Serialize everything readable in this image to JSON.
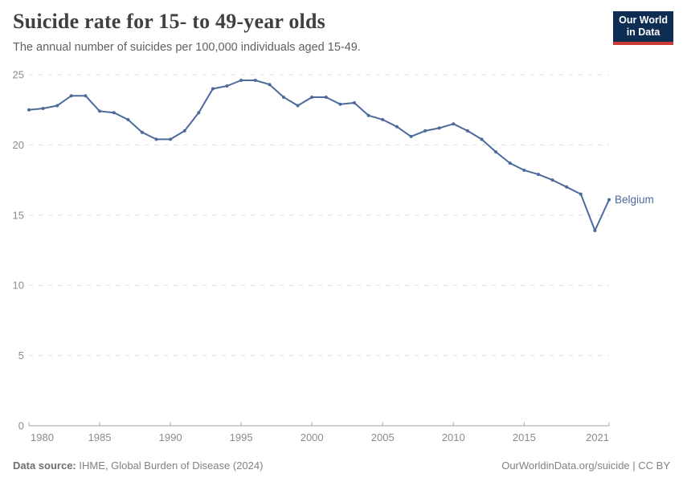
{
  "header": {
    "title": "Suicide rate for 15- to 49-year olds",
    "subtitle": "The annual number of suicides per 100,000 individuals aged 15-49."
  },
  "logo": {
    "line1": "Our World",
    "line2": "in Data",
    "bg_color": "#0d2d52",
    "accent_color": "#cc3b33"
  },
  "chart_data": {
    "type": "line",
    "title": "Suicide rate for 15- to 49-year olds",
    "x": [
      1980,
      1981,
      1982,
      1983,
      1984,
      1985,
      1986,
      1987,
      1988,
      1989,
      1990,
      1991,
      1992,
      1993,
      1994,
      1995,
      1996,
      1997,
      1998,
      1999,
      2000,
      2001,
      2002,
      2003,
      2004,
      2005,
      2006,
      2007,
      2008,
      2009,
      2010,
      2011,
      2012,
      2013,
      2014,
      2015,
      2016,
      2017,
      2018,
      2019,
      2020,
      2021
    ],
    "series": [
      {
        "name": "Belgium",
        "color": "#4c6a9c",
        "values": [
          22.5,
          22.6,
          22.8,
          23.5,
          23.5,
          22.4,
          22.3,
          21.8,
          20.9,
          20.4,
          20.4,
          21.0,
          22.3,
          24.0,
          24.2,
          24.6,
          24.6,
          24.3,
          23.4,
          22.8,
          23.4,
          23.4,
          22.9,
          23.0,
          22.1,
          21.8,
          21.3,
          20.6,
          21.0,
          21.2,
          21.5,
          21.0,
          20.4,
          19.5,
          18.7,
          18.2,
          17.9,
          17.5,
          17.0,
          16.5,
          13.9,
          16.1
        ]
      }
    ],
    "xlim": [
      1980,
      2021
    ],
    "ylim": [
      0,
      25
    ],
    "y_ticks": [
      0,
      5,
      10,
      15,
      20,
      25
    ],
    "x_ticks": [
      1980,
      1985,
      1990,
      1995,
      2000,
      2005,
      2010,
      2015,
      2021
    ],
    "grid": true,
    "legend_position": "end-of-line",
    "end_label": "Belgium",
    "theme": {
      "grid_color": "#dcdcdc",
      "axis_color": "#a3a3a3",
      "tick_label_color": "#8b8b8b"
    }
  },
  "footer": {
    "source_label": "Data source:",
    "source_text": " IHME, Global Burden of Disease (2024)",
    "right_text": "OurWorldinData.org/suicide | CC BY"
  }
}
